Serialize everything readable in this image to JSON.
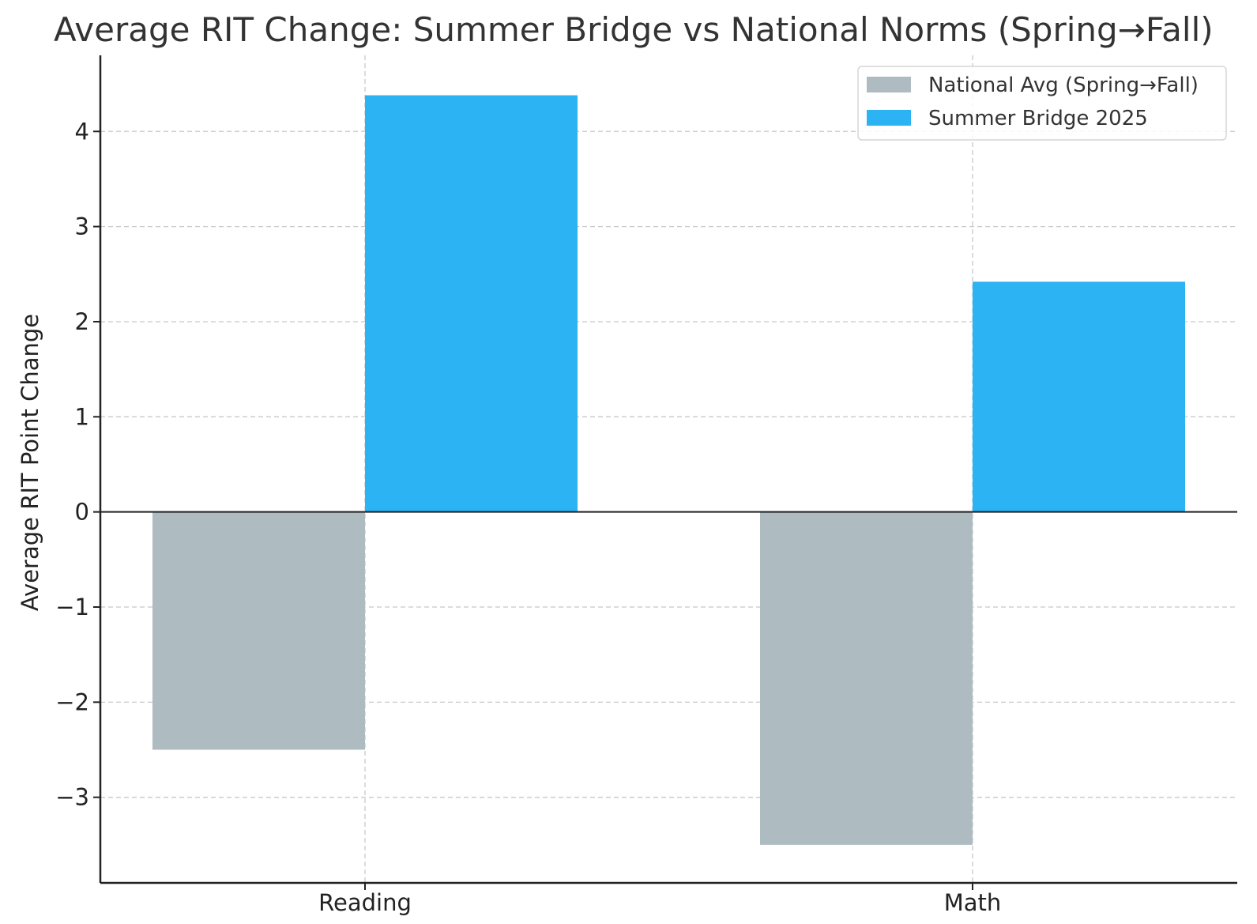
{
  "chart_data": {
    "type": "bar",
    "title": "Average RIT Change: Summer Bridge vs National Norms (Spring→Fall)",
    "xlabel": "",
    "ylabel": "Average RIT Point Change",
    "categories": [
      "Reading",
      "Math"
    ],
    "series": [
      {
        "name": "National Avg (Spring→Fall)",
        "color": "#aebcc2",
        "values": [
          -2.5,
          -3.5
        ]
      },
      {
        "name": "Summer Bridge 2025",
        "color": "#2bb3f3",
        "values": [
          4.38,
          2.42
        ]
      }
    ],
    "ylim": [
      -3.9,
      4.8
    ],
    "yticks": [
      4,
      3,
      2,
      1,
      0,
      -1,
      -2,
      -3
    ],
    "ytick_labels": [
      "4",
      "3",
      "2",
      "1",
      "0",
      "−1",
      "−2",
      "−3"
    ],
    "grid": true,
    "legend_position": "top-right"
  }
}
